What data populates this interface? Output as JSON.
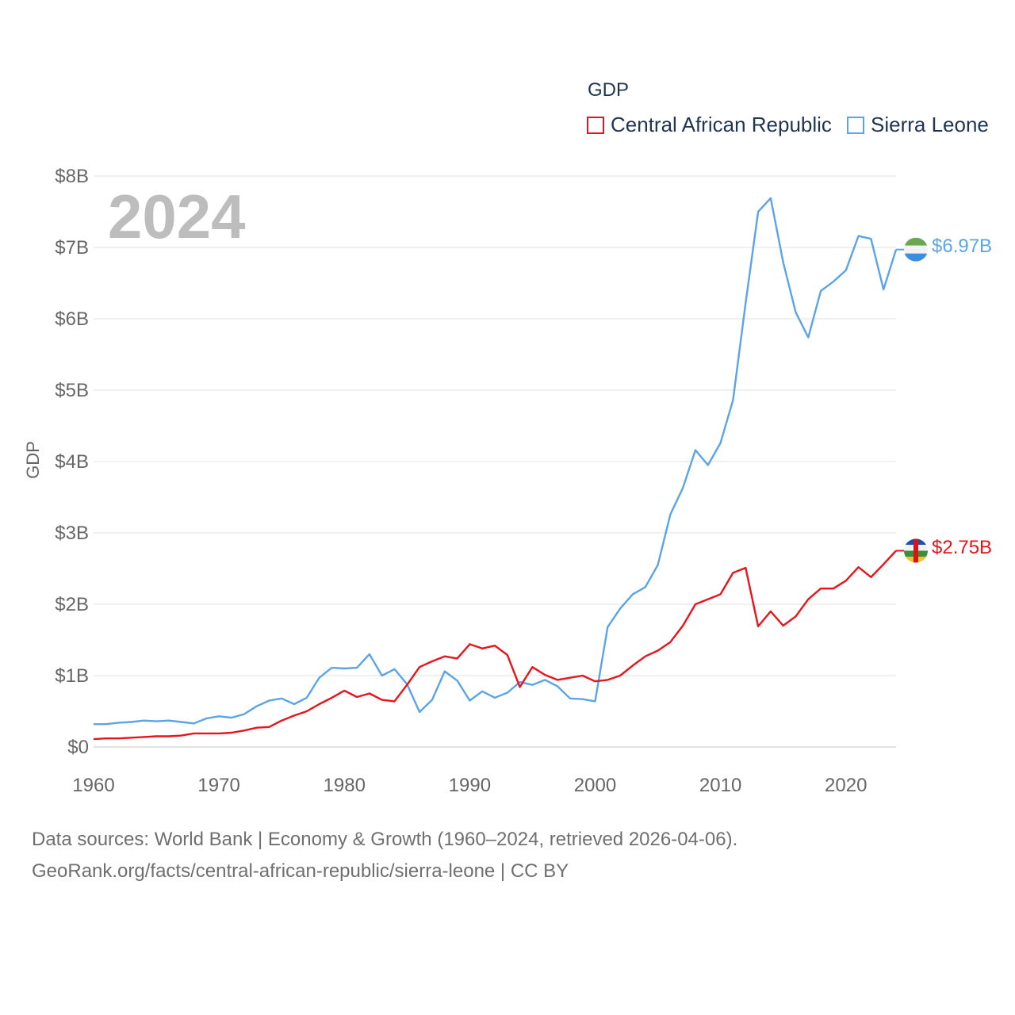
{
  "chart_data": {
    "type": "line",
    "title": "GDP",
    "year_label": "2024",
    "ylabel": "GDP",
    "xlabel": "",
    "xlim": [
      1960,
      2024
    ],
    "ylim": [
      0,
      8000000000
    ],
    "x_ticks": [
      "1960",
      "1970",
      "1980",
      "1990",
      "2000",
      "2010",
      "2020"
    ],
    "y_ticks": [
      "$0",
      "$1B",
      "$2B",
      "$3B",
      "$4B",
      "$5B",
      "$6B",
      "$7B",
      "$8B"
    ],
    "x": [
      1960,
      1961,
      1962,
      1963,
      1964,
      1965,
      1966,
      1967,
      1968,
      1969,
      1970,
      1971,
      1972,
      1973,
      1974,
      1975,
      1976,
      1977,
      1978,
      1979,
      1980,
      1981,
      1982,
      1983,
      1984,
      1985,
      1986,
      1987,
      1988,
      1989,
      1990,
      1991,
      1992,
      1993,
      1994,
      1995,
      1996,
      1997,
      1998,
      1999,
      2000,
      2001,
      2002,
      2003,
      2004,
      2005,
      2006,
      2007,
      2008,
      2009,
      2010,
      2011,
      2012,
      2013,
      2014,
      2015,
      2016,
      2017,
      2018,
      2019,
      2020,
      2021,
      2022,
      2023,
      2024
    ],
    "series": [
      {
        "name": "Central African Republic",
        "color": "#e8141c",
        "end_label": "$2.75B",
        "values": [
          0.11,
          0.12,
          0.12,
          0.13,
          0.14,
          0.15,
          0.15,
          0.16,
          0.19,
          0.19,
          0.19,
          0.2,
          0.23,
          0.27,
          0.28,
          0.37,
          0.44,
          0.5,
          0.6,
          0.69,
          0.79,
          0.7,
          0.75,
          0.66,
          0.64,
          0.87,
          1.12,
          1.2,
          1.27,
          1.24,
          1.44,
          1.38,
          1.42,
          1.29,
          0.84,
          1.12,
          1.01,
          0.94,
          0.97,
          1.0,
          0.92,
          0.94,
          1.0,
          1.14,
          1.27,
          1.35,
          1.47,
          1.7,
          2.0,
          2.07,
          2.14,
          2.44,
          2.51,
          1.69,
          1.9,
          1.7,
          1.83,
          2.07,
          2.22,
          2.22,
          2.33,
          2.52,
          2.38,
          2.56,
          2.75
        ]
      },
      {
        "name": "Sierra Leone",
        "color": "#5ba4e5",
        "end_label": "$6.97B",
        "values": [
          0.32,
          0.32,
          0.34,
          0.35,
          0.37,
          0.36,
          0.37,
          0.35,
          0.33,
          0.4,
          0.43,
          0.41,
          0.46,
          0.57,
          0.65,
          0.68,
          0.6,
          0.69,
          0.97,
          1.11,
          1.1,
          1.11,
          1.3,
          1.0,
          1.09,
          0.88,
          0.49,
          0.66,
          1.06,
          0.93,
          0.65,
          0.78,
          0.69,
          0.76,
          0.91,
          0.87,
          0.94,
          0.85,
          0.68,
          0.67,
          0.64,
          1.68,
          1.94,
          2.14,
          2.24,
          2.55,
          3.26,
          3.63,
          4.16,
          3.95,
          4.26,
          4.86,
          6.22,
          7.5,
          7.69,
          6.79,
          6.09,
          5.74,
          6.39,
          6.52,
          6.68,
          7.16,
          7.12,
          6.41,
          6.97
        ]
      }
    ]
  },
  "footer": {
    "line1": "Data sources: World Bank | Economy & Growth (1960–2024, retrieved 2026-04-06).",
    "line2": "GeoRank.org/facts/central-african-republic/sierra-leone | CC BY"
  }
}
